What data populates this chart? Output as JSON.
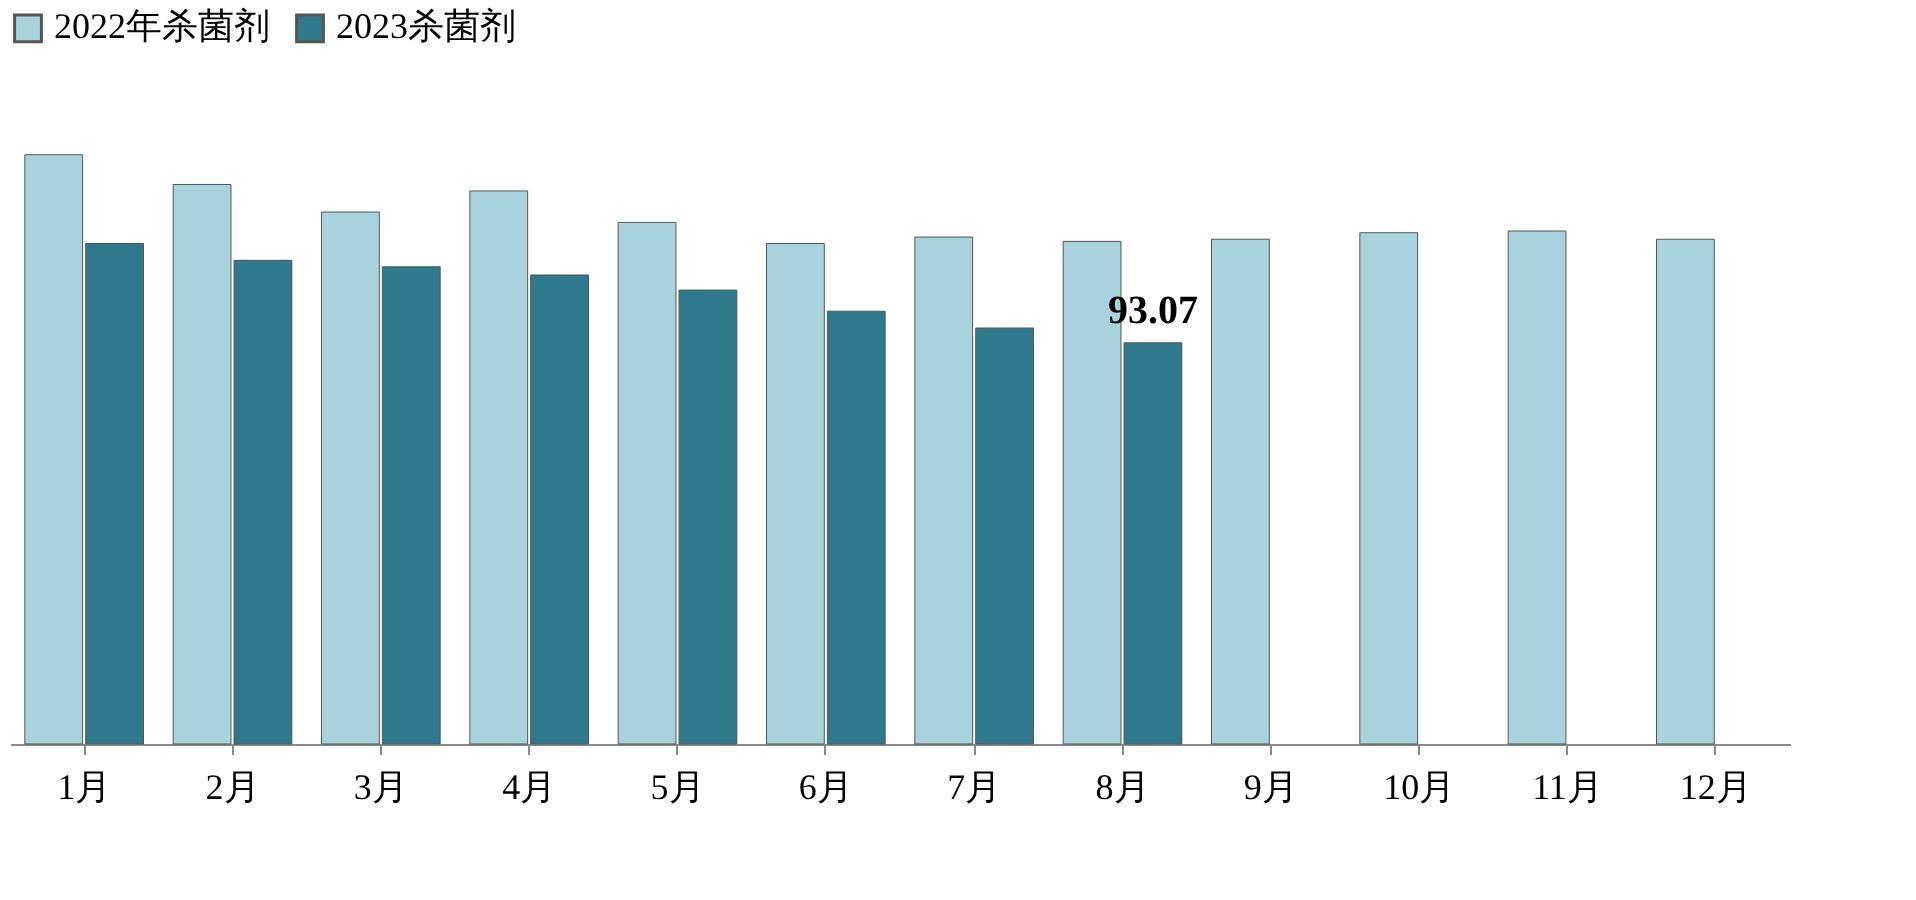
{
  "chart_data": {
    "type": "bar",
    "categories": [
      "1月",
      "2月",
      "3月",
      "4月",
      "5月",
      "6月",
      "7月",
      "8月",
      "9月",
      "10月",
      "11月",
      "12月"
    ],
    "series": [
      {
        "name": "2022年杀菌剂",
        "color": "#a9d3dc",
        "values": [
          136.7,
          129.8,
          123.4,
          128.3,
          121.0,
          116.1,
          117.6,
          116.6,
          117.1,
          118.6,
          119.0,
          117.1
        ]
      },
      {
        "name": "2023杀菌剂",
        "color": "#2e7a8c",
        "values": [
          116.1,
          112.2,
          110.7,
          108.8,
          105.3,
          100.4,
          96.5,
          93.07,
          null,
          null,
          null,
          null
        ],
        "value_labels": [
          null,
          null,
          null,
          null,
          null,
          null,
          null,
          "93.07",
          null,
          null,
          null,
          null
        ]
      }
    ],
    "legend": "top",
    "grid": false
  }
}
